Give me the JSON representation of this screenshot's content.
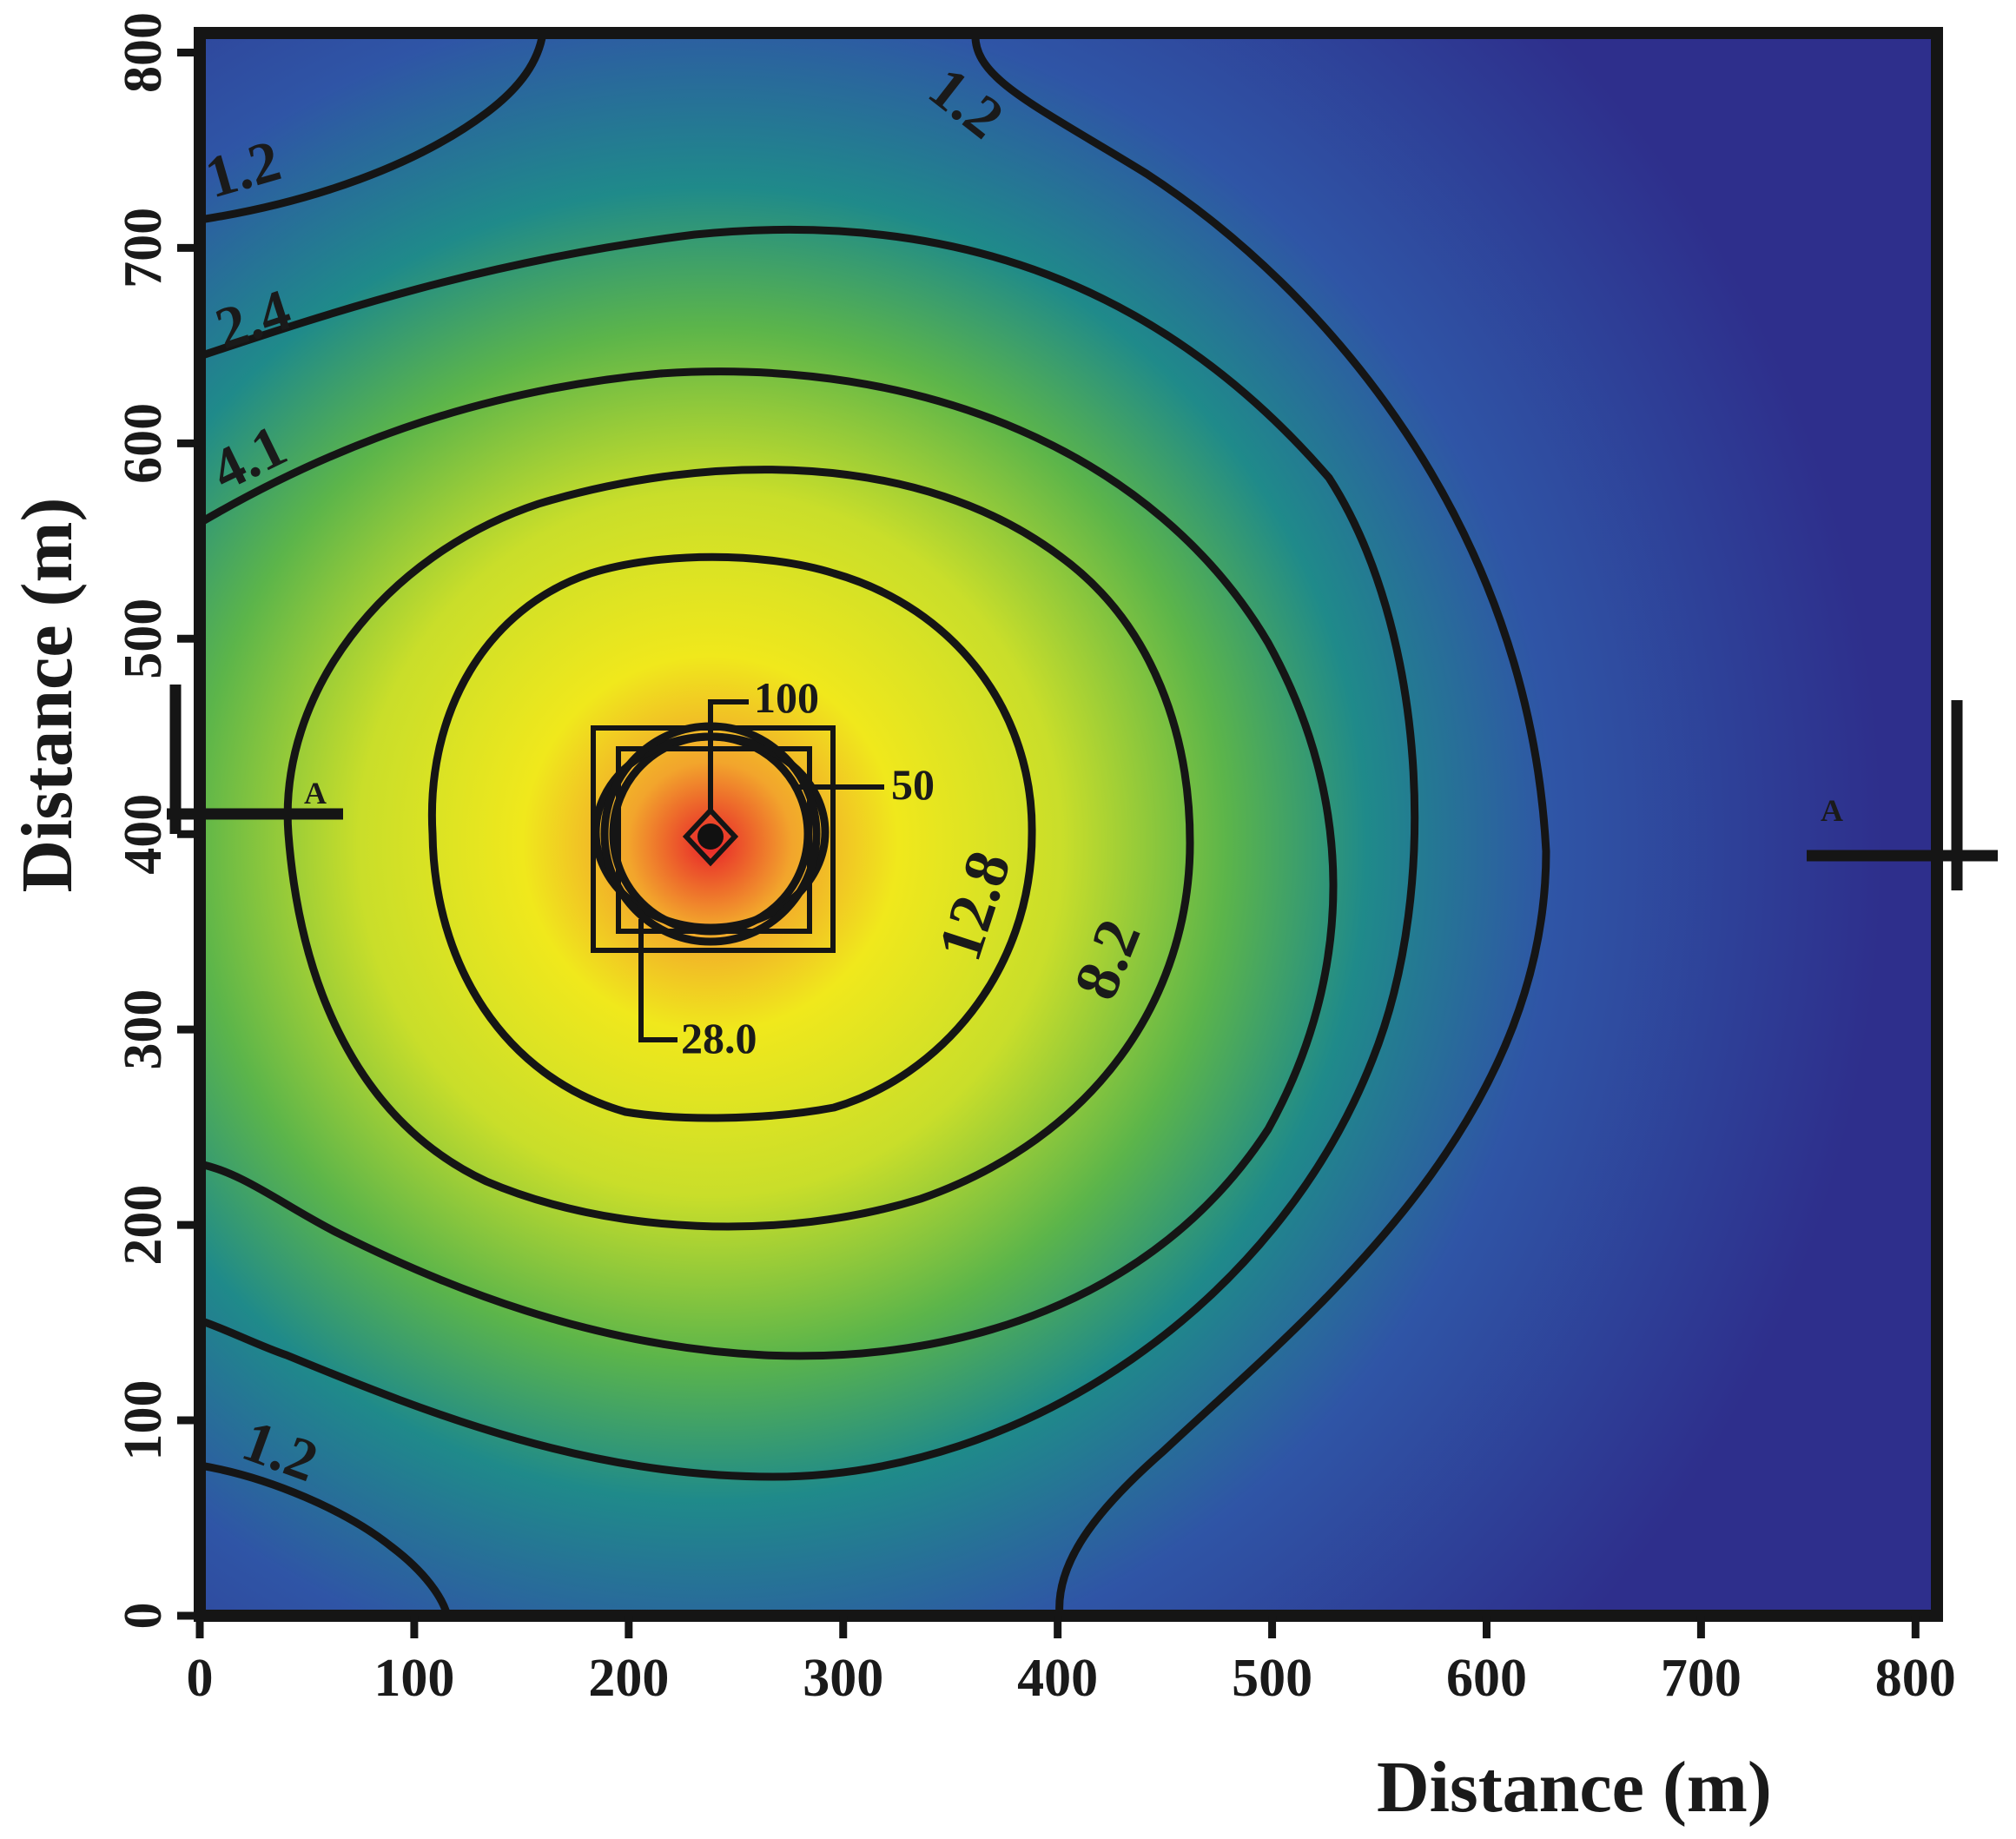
{
  "chart_data": {
    "type": "heatmap",
    "subtype": "filled contour map",
    "xlabel": "Distance (m)",
    "ylabel": "Distance (m)",
    "xlim": [
      0,
      810
    ],
    "ylim": [
      0,
      810
    ],
    "xticks": [
      0,
      100,
      200,
      300,
      400,
      500,
      600,
      700,
      800
    ],
    "yticks": [
      0,
      100,
      200,
      300,
      400,
      500,
      600,
      700,
      800
    ],
    "colormap": [
      "#2e2f8c",
      "#2f55a6",
      "#1f8a8a",
      "#5cb54a",
      "#c9de2a",
      "#f0e81c",
      "#f2a52c",
      "#e8232a"
    ],
    "peak_location": [
      238,
      395
    ],
    "contour_levels": [
      "1.2",
      "2.4",
      "4.1",
      "8.2",
      "12.8",
      "28.0",
      "50",
      "100"
    ],
    "contour_labels": [
      {
        "text": "1.2",
        "x": 28,
        "y": 740
      },
      {
        "text": "1.2",
        "x": 355,
        "y": 780
      },
      {
        "text": "1.2",
        "x": 40,
        "y": 80
      },
      {
        "text": "2.4",
        "x": 33,
        "y": 660
      },
      {
        "text": "4.1",
        "x": 30,
        "y": 580
      },
      {
        "text": "12.8",
        "x": 362,
        "y": 350
      },
      {
        "text": "8.2",
        "x": 430,
        "y": 335
      }
    ],
    "callouts": [
      {
        "text": "100",
        "anchor": [
          238,
          400
        ]
      },
      {
        "text": "50",
        "anchor": [
          280,
          420
        ]
      },
      {
        "text": "28.0",
        "anchor": [
          200,
          360
        ]
      }
    ],
    "section_markers": [
      "A",
      "A"
    ],
    "grid": false,
    "legend": "none"
  }
}
